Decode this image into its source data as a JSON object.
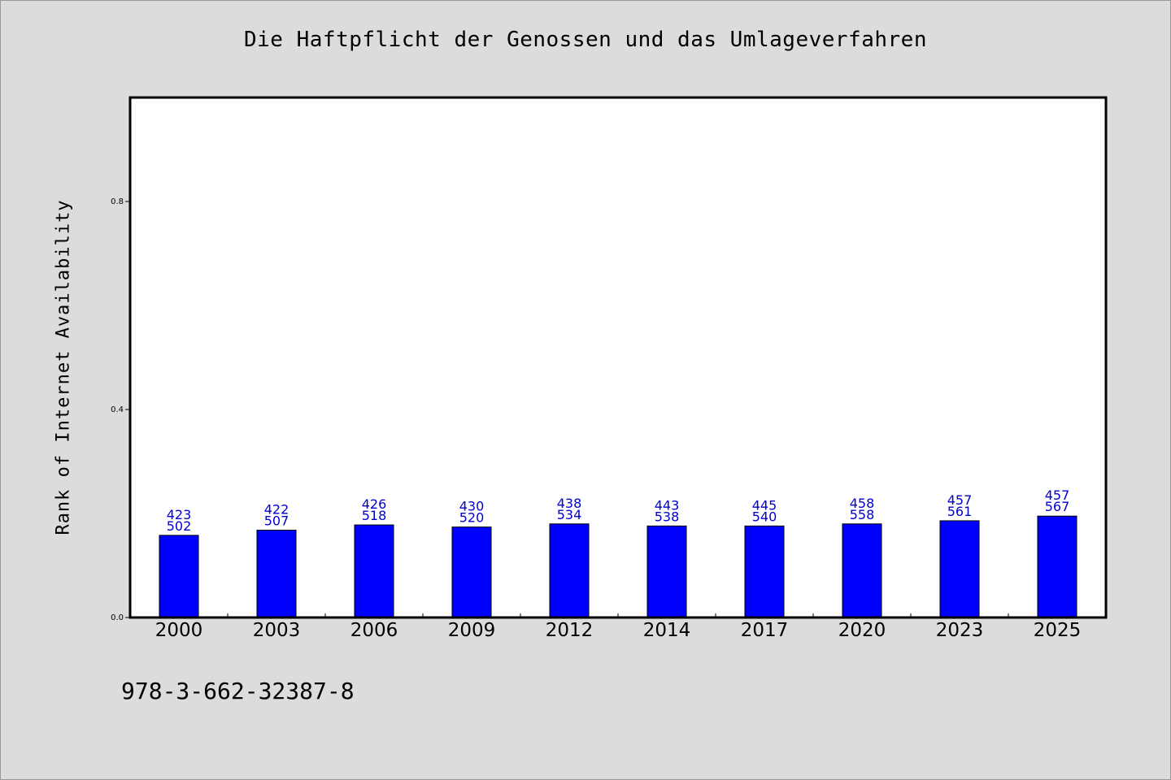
{
  "chart_data": {
    "type": "bar",
    "title": "Die Haftpflicht der Genossen und das Umlageverfahren",
    "xlabel": "",
    "ylabel": "Rank of Internet Availability",
    "categories": [
      "2000",
      "2003",
      "2006",
      "2009",
      "2012",
      "2014",
      "2017",
      "2020",
      "2023",
      "2025"
    ],
    "values": [
      0.158,
      0.168,
      0.178,
      0.174,
      0.18,
      0.176,
      0.176,
      0.18,
      0.186,
      0.195
    ],
    "bar_labels_top": [
      "423",
      "422",
      "426",
      "430",
      "438",
      "443",
      "445",
      "458",
      "457",
      "457"
    ],
    "bar_labels_bottom": [
      "502",
      "507",
      "518",
      "520",
      "534",
      "538",
      "540",
      "558",
      "561",
      "567"
    ],
    "ylim": [
      0,
      1.0
    ],
    "yticks": [
      "0.0",
      "0.4",
      "0.8"
    ],
    "grid": false,
    "colors": {
      "bar": "#0000ff",
      "bar_label": "#0000cc",
      "plot_bg": "#ffffff",
      "figure_bg": "#dcdcdc"
    }
  },
  "footer": {
    "isbn": "978-3-662-32387-8"
  }
}
